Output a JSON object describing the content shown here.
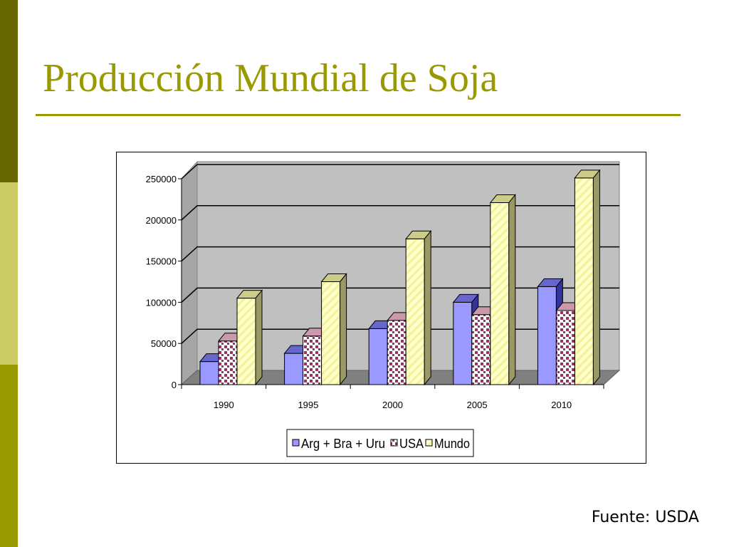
{
  "slide": {
    "title": "Producción Mundial de Soja",
    "source": "Fuente: USDA"
  },
  "chart_data": {
    "type": "bar",
    "categories": [
      "1990",
      "1995",
      "2000",
      "2005",
      "2010"
    ],
    "series": [
      {
        "name": "Arg + Bra + Uru",
        "values": [
          28000,
          38000,
          68000,
          100000,
          119000
        ],
        "color": "#9999ff",
        "pattern": "solid"
      },
      {
        "name": "USA",
        "values": [
          53000,
          59000,
          78000,
          85000,
          90000
        ],
        "color": "#993366",
        "pattern": "dots"
      },
      {
        "name": "Mundo",
        "values": [
          105000,
          125000,
          177000,
          221000,
          251000
        ],
        "color": "#ffffcc",
        "pattern": "diagonal"
      }
    ],
    "ylim": [
      0,
      250000
    ],
    "yticks": [
      "0",
      "50000",
      "100000",
      "150000",
      "200000",
      "250000"
    ],
    "grid": true,
    "legend": "bottom",
    "three_d": true
  }
}
